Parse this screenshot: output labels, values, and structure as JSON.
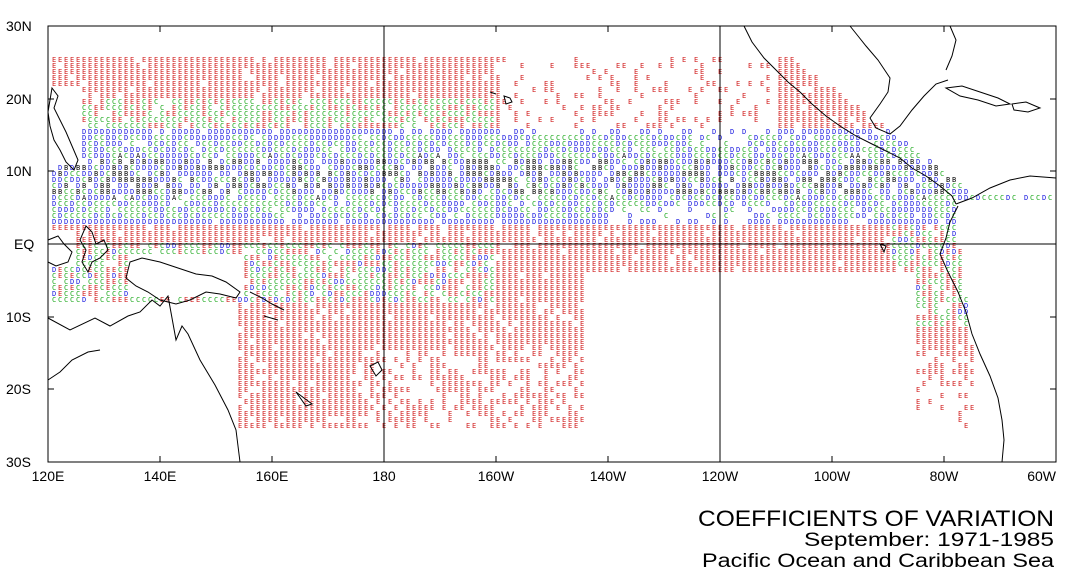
{
  "map": {
    "lat_labels": [
      "30N",
      "20N",
      "10N",
      "EQ",
      "10S",
      "20S",
      "30S"
    ],
    "lon_labels": [
      "120E",
      "140E",
      "160E",
      "180",
      "160W",
      "140W",
      "120W",
      "100W",
      "80W",
      "60W"
    ],
    "lat_range": [
      -30,
      30
    ],
    "lon_range": [
      120,
      300
    ],
    "reference_lines": [
      "EQ",
      "180",
      "120W"
    ],
    "marker_colors": {
      "A": "#000000",
      "B": "#000000",
      "C": "#1aa81a",
      "D": "#1a1ae0",
      "E": "#d22020"
    },
    "symbols": [
      "A",
      "B",
      "C",
      "D",
      "E"
    ]
  },
  "title": {
    "line1": "COEFFICIENTS OF VARIATION",
    "line2": "September: 1971-1985",
    "line3": "Pacific Ocean and Caribbean Sea"
  }
}
